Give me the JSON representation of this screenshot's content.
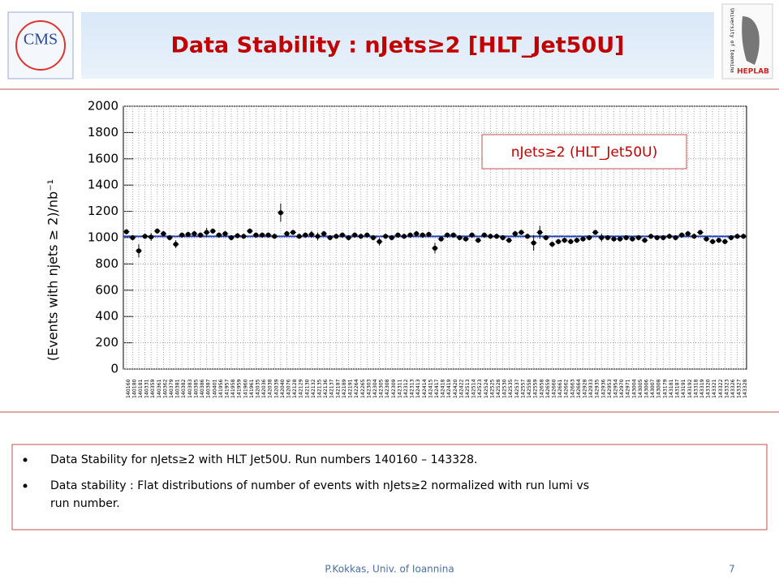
{
  "title": "Data Stability : nJets≥2 [HLT_Jet50U]",
  "logos": {
    "left": "CMS",
    "right_top": "University of Ioannina",
    "right_bottom": "HEPLAB"
  },
  "bullets": [
    "Data Stability for nJets≥2 with HLT Jet50U. Run numbers 140160 – 143328.",
    "Data stability : Flat distributions of number of events with nJets≥2 normalized with run lumi vs run number."
  ],
  "footer": {
    "author": "P.Kokkas, Univ. of Ioannina",
    "page": "7"
  },
  "chart_data": {
    "type": "errorbar",
    "ylabel": "(Events with njets ≥ 2)/nb⁻¹",
    "legend": "nJets≥2 (HLT_Jet50U)",
    "legend_position": "upper right",
    "color": "#000000",
    "fit_value": 1010,
    "fit_color": "#1f3fbf",
    "grid": true,
    "ylim": [
      0,
      2000
    ],
    "yticks": [
      0,
      200,
      400,
      600,
      800,
      1000,
      1200,
      1400,
      1600,
      1800,
      2000
    ],
    "categories": [
      "140160",
      "140180",
      "140181",
      "140331",
      "140359",
      "140361",
      "140362",
      "140379",
      "140381",
      "140382",
      "140383",
      "140385",
      "140386",
      "140387",
      "140401",
      "141956",
      "141957",
      "141958",
      "141959",
      "141960",
      "141961",
      "142035",
      "142036",
      "142038",
      "142039",
      "142040",
      "142076",
      "142128",
      "142129",
      "142130",
      "142132",
      "142135",
      "142136",
      "142137",
      "142187",
      "142189",
      "142191",
      "142264",
      "142265",
      "142303",
      "142304",
      "142305",
      "142308",
      "142309",
      "142311",
      "142312",
      "142313",
      "142413",
      "142414",
      "142415",
      "142417",
      "142418",
      "142419",
      "142420",
      "142422",
      "142513",
      "142514",
      "142523",
      "142524",
      "142525",
      "142528",
      "142530",
      "142535",
      "142537",
      "142557",
      "142558",
      "142559",
      "142658",
      "142659",
      "142660",
      "142661",
      "142662",
      "142663",
      "142664",
      "142928",
      "142933",
      "142935",
      "142936",
      "142953",
      "142954",
      "142970",
      "142971",
      "143004",
      "143005",
      "143006",
      "143007",
      "143008",
      "143179",
      "143181",
      "143187",
      "143191",
      "143192",
      "143318",
      "143319",
      "143320",
      "143321",
      "143322",
      "143323",
      "143326",
      "143327",
      "143328"
    ],
    "values": [
      1045,
      1000,
      900,
      1010,
      1005,
      1050,
      1030,
      1000,
      950,
      1020,
      1025,
      1030,
      1020,
      1040,
      1050,
      1020,
      1030,
      1000,
      1015,
      1010,
      1050,
      1020,
      1020,
      1020,
      1010,
      1190,
      1030,
      1040,
      1010,
      1020,
      1025,
      1010,
      1030,
      1000,
      1010,
      1020,
      1000,
      1020,
      1010,
      1020,
      1000,
      970,
      1010,
      1000,
      1020,
      1010,
      1020,
      1030,
      1020,
      1025,
      920,
      990,
      1020,
      1020,
      1000,
      990,
      1020,
      980,
      1020,
      1010,
      1010,
      1000,
      980,
      1030,
      1040,
      1010,
      960,
      1040,
      1000,
      950,
      970,
      980,
      970,
      980,
      990,
      1000,
      1040,
      1000,
      1000,
      990,
      990,
      1000,
      990,
      1000,
      980,
      1010,
      1000,
      1000,
      1010,
      1000,
      1020,
      1030,
      1010,
      1040,
      990,
      970,
      980,
      970,
      1000,
      1010,
      1010
    ],
    "errors": [
      20,
      20,
      50,
      20,
      30,
      20,
      20,
      20,
      30,
      20,
      20,
      20,
      20,
      35,
      20,
      20,
      20,
      20,
      20,
      20,
      20,
      20,
      20,
      20,
      20,
      70,
      20,
      20,
      20,
      20,
      25,
      30,
      20,
      20,
      20,
      20,
      20,
      20,
      20,
      20,
      20,
      30,
      20,
      20,
      20,
      20,
      20,
      20,
      20,
      20,
      40,
      20,
      20,
      20,
      20,
      20,
      20,
      20,
      20,
      20,
      20,
      20,
      20,
      20,
      20,
      20,
      60,
      50,
      20,
      20,
      20,
      20,
      20,
      20,
      20,
      20,
      20,
      30,
      20,
      20,
      20,
      20,
      20,
      20,
      20,
      20,
      20,
      20,
      20,
      20,
      20,
      20,
      20,
      20,
      20,
      20,
      20,
      20,
      20,
      20,
      20
    ]
  }
}
